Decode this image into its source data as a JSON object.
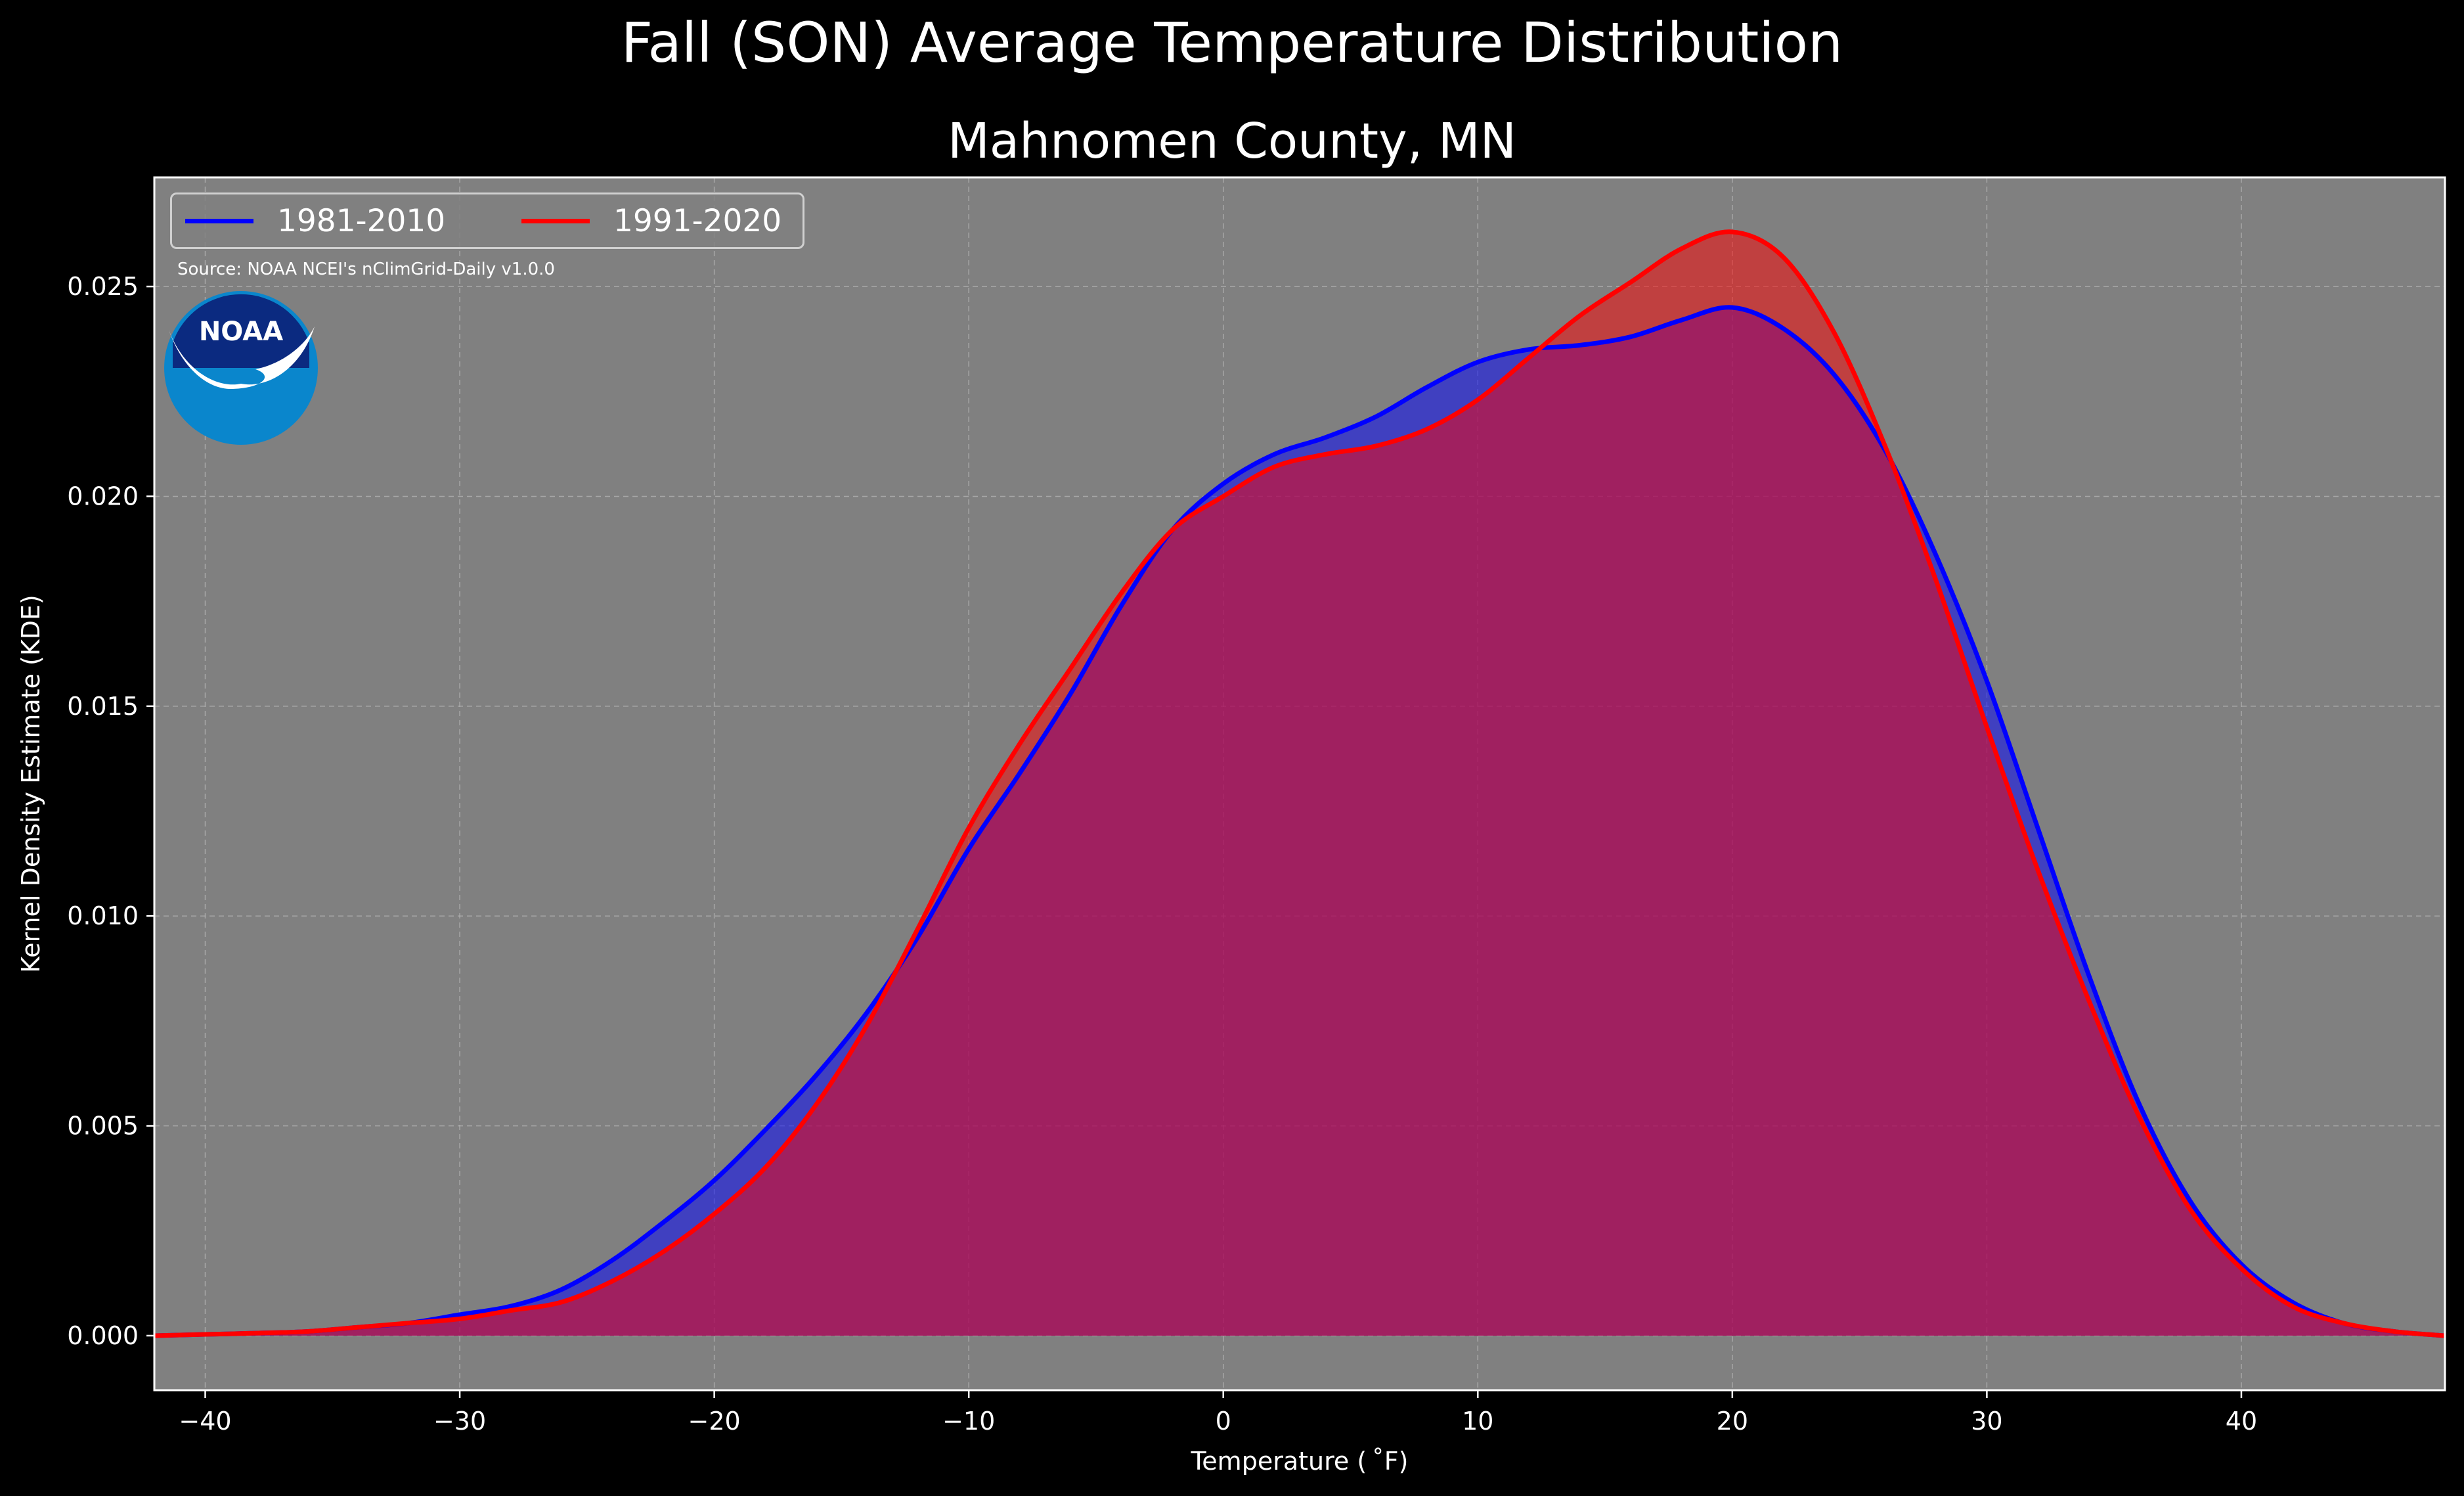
{
  "figure": {
    "suptitle": "Fall (SON) Average Temperature Distribution",
    "subtitle": "Mahnomen County, MN",
    "source_note": "Source: NOAA NCEI's nClimGrid-Daily v1.0.0",
    "logo_text": "NOAA",
    "background_color": "#000000",
    "plot_background_color": "#808080"
  },
  "legend": {
    "placement": "top-left",
    "items": [
      {
        "label": "1981-2010",
        "color": "#0000ff"
      },
      {
        "label": "1991-2020",
        "color": "#ff0000"
      }
    ]
  },
  "chart_data": {
    "type": "area",
    "title": "Mahnomen County, MN",
    "xlabel": "Temperature ($^\\circ$F)",
    "xlabel_display": "Temperature ( ˚F)",
    "ylabel": "Kernel Density Estimate (KDE)",
    "xlim": [
      -42,
      48
    ],
    "ylim": [
      -0.0013,
      0.0276
    ],
    "x_ticks": [
      -40,
      -30,
      -20,
      -10,
      0,
      10,
      20,
      30,
      40
    ],
    "x_tick_labels": [
      "−40",
      "−30",
      "−20",
      "−10",
      "0",
      "10",
      "20",
      "30",
      "40"
    ],
    "y_ticks": [
      0.0,
      0.005,
      0.01,
      0.015,
      0.02,
      0.025
    ],
    "y_tick_labels": [
      "0.000",
      "0.005",
      "0.010",
      "0.015",
      "0.020",
      "0.025"
    ],
    "grid": true,
    "x": [
      -42,
      -40,
      -38,
      -36,
      -34,
      -32,
      -30,
      -28,
      -26,
      -24,
      -22,
      -20,
      -18,
      -16,
      -14,
      -12,
      -10,
      -8,
      -6,
      -4,
      -2,
      0,
      2,
      4,
      6,
      8,
      10,
      12,
      14,
      16,
      18,
      20,
      22,
      24,
      26,
      28,
      30,
      32,
      34,
      36,
      38,
      40,
      42,
      44,
      46,
      48
    ],
    "series": [
      {
        "name": "1981-2010",
        "color": "#0000ff",
        "values": [
          0.0,
          3e-05,
          6e-05,
          0.0001,
          0.0002,
          0.0003,
          0.0005,
          0.0007,
          0.0011,
          0.0018,
          0.0027,
          0.0037,
          0.0049,
          0.0062,
          0.0077,
          0.0095,
          0.0116,
          0.0134,
          0.0153,
          0.0174,
          0.0192,
          0.0203,
          0.021,
          0.0214,
          0.0219,
          0.0226,
          0.0232,
          0.0235,
          0.0236,
          0.0238,
          0.0242,
          0.0245,
          0.024,
          0.0229,
          0.0211,
          0.0186,
          0.0156,
          0.0121,
          0.0086,
          0.0055,
          0.0032,
          0.0017,
          0.0008,
          0.0003,
          0.0001,
          0.0
        ]
      },
      {
        "name": "1991-2020",
        "color": "#ff0000",
        "values": [
          0.0,
          3e-05,
          6e-05,
          0.0001,
          0.0002,
          0.0003,
          0.0004,
          0.0006,
          0.0008,
          0.0013,
          0.002,
          0.0029,
          0.004,
          0.0055,
          0.0074,
          0.0097,
          0.0121,
          0.0141,
          0.0159,
          0.0177,
          0.0192,
          0.02,
          0.0207,
          0.021,
          0.0212,
          0.0216,
          0.0223,
          0.0233,
          0.0243,
          0.0251,
          0.0259,
          0.0263,
          0.0257,
          0.0239,
          0.0212,
          0.018,
          0.0145,
          0.0111,
          0.008,
          0.0052,
          0.003,
          0.0016,
          0.0007,
          0.0003,
          0.0001,
          0.0
        ]
      }
    ]
  }
}
